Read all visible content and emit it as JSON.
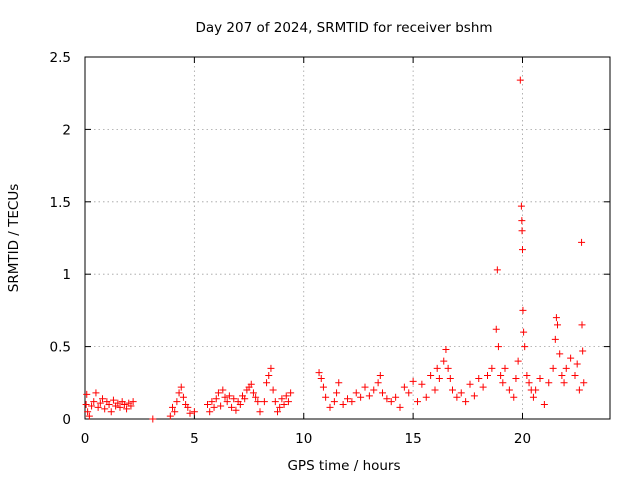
{
  "chart_data": {
    "type": "scatter",
    "title": "Day 207 of 2024, SRMTID for receiver bshm",
    "xlabel": "GPS time / hours",
    "ylabel": "SRMTID / TECUs",
    "xlim": [
      0,
      24
    ],
    "ylim": [
      0,
      2.5
    ],
    "xticks": [
      0,
      5,
      10,
      15,
      20
    ],
    "xtick_labels": [
      "0",
      "5",
      "10",
      "15",
      "20"
    ],
    "yticks": [
      0,
      0.5,
      1,
      1.5,
      2,
      2.5
    ],
    "ytick_labels": [
      "0",
      "0.5",
      "1",
      "1.5",
      "2",
      "2.5"
    ],
    "grid": true,
    "marker": "+",
    "marker_color": "#ff0000",
    "series": [
      {
        "name": "SRMTID",
        "x": [
          0.05,
          0.08,
          0.12,
          0.2,
          0.3,
          0.4,
          0.5,
          0.6,
          0.7,
          0.8,
          0.9,
          1.0,
          1.1,
          1.2,
          1.3,
          1.4,
          1.5,
          1.6,
          1.7,
          1.8,
          1.9,
          2.0,
          2.1,
          2.2,
          3.1,
          3.9,
          4.0,
          4.1,
          4.2,
          4.3,
          4.4,
          4.5,
          4.6,
          4.7,
          4.8,
          5.0,
          5.6,
          5.7,
          5.8,
          5.9,
          6.0,
          6.1,
          6.2,
          6.3,
          6.4,
          6.5,
          6.6,
          6.7,
          6.8,
          6.9,
          7.0,
          7.1,
          7.2,
          7.3,
          7.4,
          7.5,
          7.6,
          7.7,
          7.8,
          7.9,
          8.0,
          8.2,
          8.3,
          8.4,
          8.5,
          8.6,
          8.7,
          8.8,
          8.9,
          9.0,
          9.1,
          9.2,
          9.3,
          9.4,
          10.7,
          10.8,
          10.9,
          11.0,
          11.2,
          11.4,
          11.5,
          11.6,
          11.8,
          12.0,
          12.2,
          12.4,
          12.6,
          12.8,
          13.0,
          13.2,
          13.4,
          13.5,
          13.6,
          13.8,
          14.0,
          14.2,
          14.4,
          14.6,
          14.8,
          15.0,
          15.2,
          15.4,
          15.6,
          15.8,
          16.0,
          16.1,
          16.2,
          16.4,
          16.5,
          16.6,
          16.7,
          16.8,
          17.0,
          17.2,
          17.4,
          17.6,
          17.8,
          18.0,
          18.2,
          18.4,
          18.6,
          18.8,
          18.85,
          18.9,
          19.0,
          19.1,
          19.2,
          19.4,
          19.6,
          19.7,
          19.8,
          19.9,
          19.95,
          19.97,
          19.98,
          20.0,
          20.02,
          20.05,
          20.1,
          20.2,
          20.3,
          20.4,
          20.5,
          20.6,
          20.8,
          21.0,
          21.2,
          21.4,
          21.5,
          21.55,
          21.6,
          21.7,
          21.8,
          21.9,
          22.0,
          22.2,
          22.4,
          22.5,
          22.6,
          22.7,
          22.72,
          22.75,
          22.8
        ],
        "y": [
          0.1,
          0.17,
          0.05,
          0.02,
          0.09,
          0.12,
          0.18,
          0.08,
          0.11,
          0.14,
          0.07,
          0.12,
          0.1,
          0.05,
          0.13,
          0.09,
          0.11,
          0.08,
          0.12,
          0.1,
          0.07,
          0.11,
          0.09,
          0.12,
          0.0,
          0.02,
          0.08,
          0.05,
          0.12,
          0.18,
          0.22,
          0.15,
          0.1,
          0.08,
          0.04,
          0.05,
          0.1,
          0.05,
          0.12,
          0.08,
          0.14,
          0.18,
          0.09,
          0.2,
          0.15,
          0.12,
          0.16,
          0.08,
          0.14,
          0.06,
          0.12,
          0.1,
          0.16,
          0.14,
          0.2,
          0.22,
          0.24,
          0.18,
          0.15,
          0.12,
          0.05,
          0.12,
          0.25,
          0.3,
          0.35,
          0.2,
          0.12,
          0.05,
          0.08,
          0.14,
          0.1,
          0.16,
          0.12,
          0.18,
          0.32,
          0.28,
          0.22,
          0.15,
          0.08,
          0.12,
          0.18,
          0.25,
          0.1,
          0.14,
          0.12,
          0.18,
          0.15,
          0.22,
          0.16,
          0.2,
          0.25,
          0.3,
          0.18,
          0.14,
          0.12,
          0.15,
          0.08,
          0.22,
          0.18,
          0.26,
          0.12,
          0.24,
          0.15,
          0.3,
          0.2,
          0.35,
          0.28,
          0.4,
          0.48,
          0.35,
          0.28,
          0.2,
          0.15,
          0.18,
          0.12,
          0.24,
          0.16,
          0.28,
          0.22,
          0.3,
          0.35,
          0.62,
          1.03,
          0.5,
          0.3,
          0.25,
          0.35,
          0.2,
          0.15,
          0.28,
          0.4,
          2.34,
          1.47,
          1.37,
          1.3,
          1.17,
          0.75,
          0.6,
          0.5,
          0.3,
          0.25,
          0.2,
          0.15,
          0.2,
          0.28,
          0.1,
          0.25,
          0.35,
          0.55,
          0.7,
          0.65,
          0.45,
          0.3,
          0.25,
          0.35,
          0.42,
          0.3,
          0.38,
          0.2,
          1.22,
          0.65,
          0.47,
          0.25
        ]
      }
    ]
  }
}
